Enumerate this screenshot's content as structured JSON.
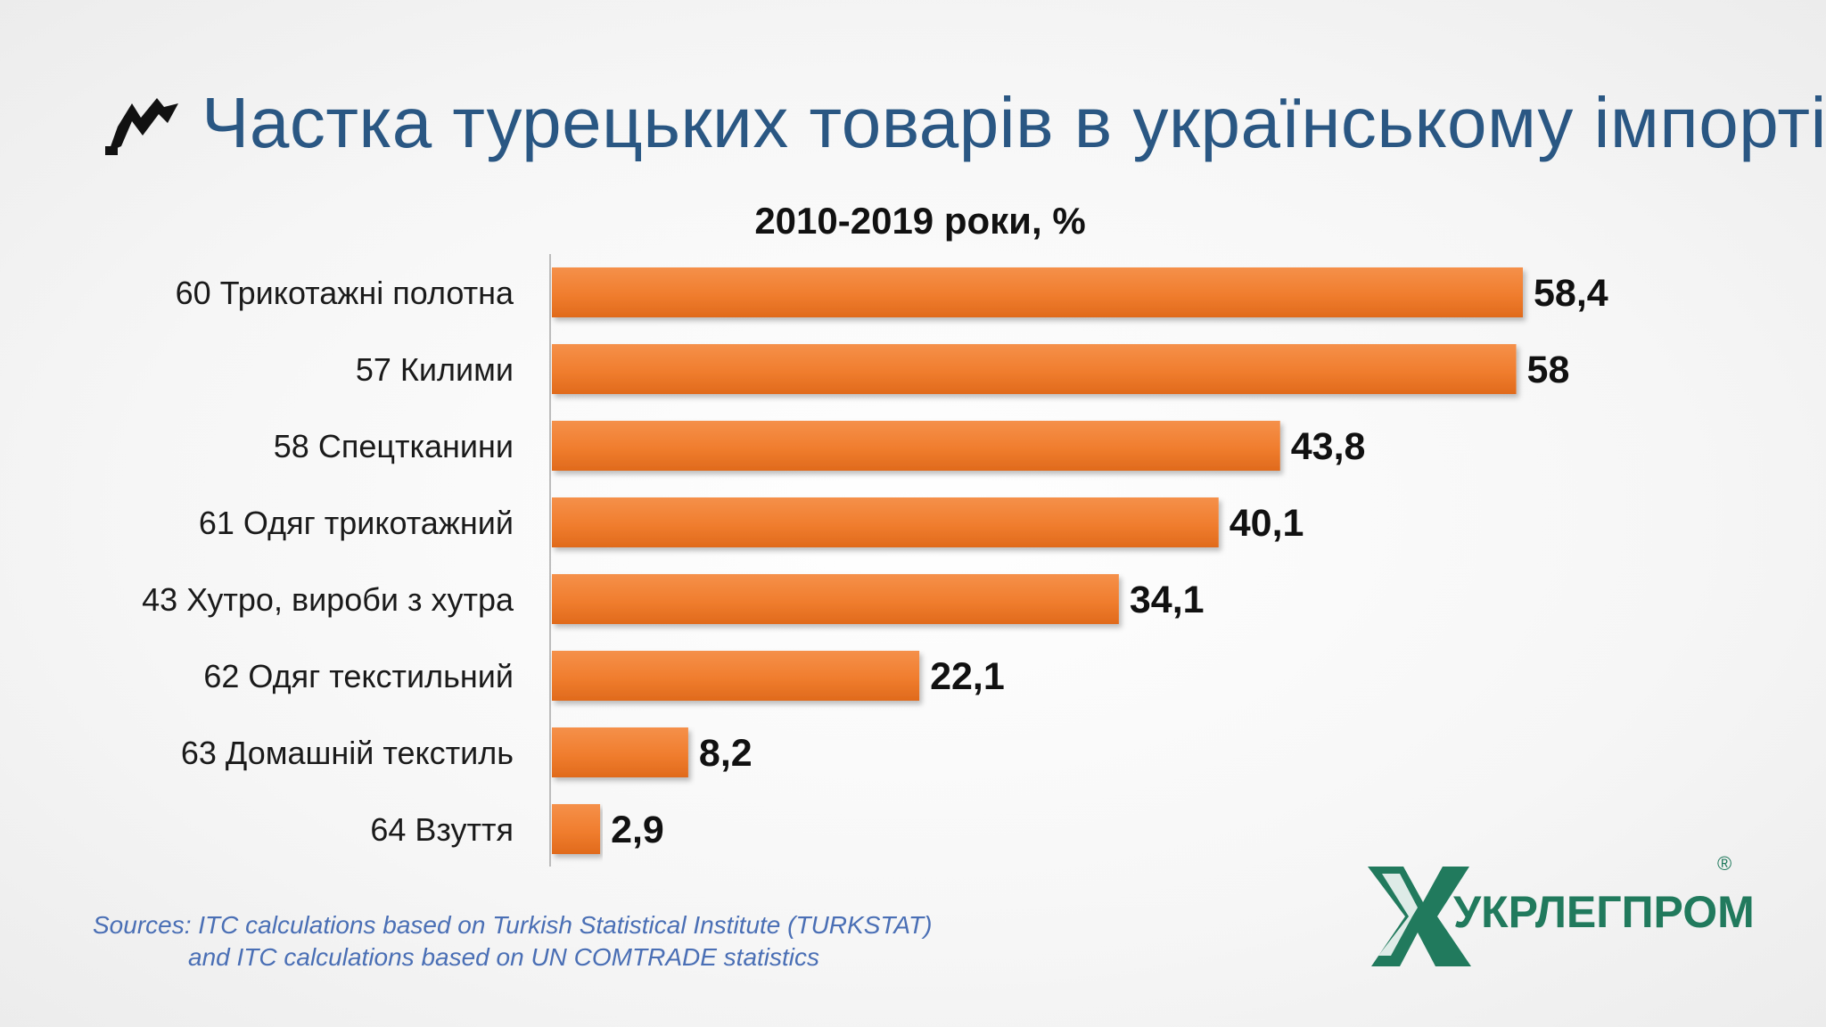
{
  "title": "Частка турецьких товарів в українському імпорті",
  "chart_data": {
    "type": "bar",
    "orientation": "horizontal",
    "subtitle": "2010-2019 роки, %",
    "categories": [
      "60 Трикотажні полотна",
      "57 Килими",
      "58 Спецтканини",
      "61 Одяг трикотажний",
      "43 Хутро, вироби з хутра",
      "62 Одяг текстильний",
      "63 Домашній текстиль",
      "64 Взуття"
    ],
    "values": [
      58.4,
      58,
      43.8,
      40.1,
      34.1,
      22.1,
      8.2,
      2.9
    ],
    "value_labels": [
      "58,4",
      "58",
      "43,8",
      "40,1",
      "34,1",
      "22,1",
      "8,2",
      "2,9"
    ],
    "bar_color": "#f07d2e",
    "xlim": [
      0,
      58.4
    ]
  },
  "sources": [
    "Sources: ITC calculations based on Turkish Statistical Institute (TURKSTAT)",
    "and ITC calculations based on UN COMTRADE statistics"
  ],
  "logo": {
    "text": "УКРЛЕГПРОМ",
    "reg": "®",
    "color": "#217a5d"
  },
  "icons": {
    "title_icon": "arrow-swoosh-icon",
    "logo_icon": "x-monogram-icon"
  }
}
